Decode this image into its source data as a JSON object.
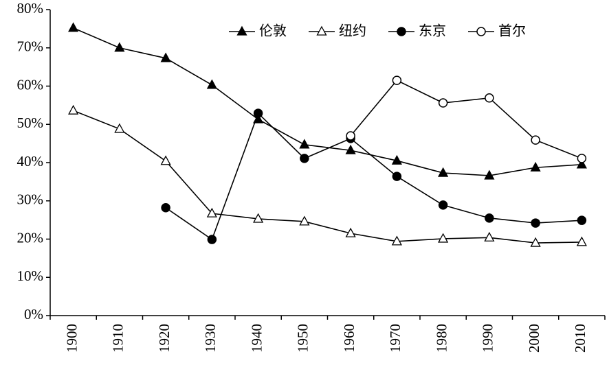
{
  "chart_data": {
    "type": "line",
    "categories": [
      "1900",
      "1910",
      "1920",
      "1930",
      "1940",
      "1950",
      "1960",
      "1970",
      "1980",
      "1990",
      "2000",
      "2010"
    ],
    "ylim": [
      0,
      80
    ],
    "yticks": [
      {
        "value": 0,
        "label": "0%"
      },
      {
        "value": 10,
        "label": "10%"
      },
      {
        "value": 20,
        "label": "20%"
      },
      {
        "value": 30,
        "label": "30%"
      },
      {
        "value": 40,
        "label": "40%"
      },
      {
        "value": 50,
        "label": "50%"
      },
      {
        "value": 60,
        "label": "60%"
      },
      {
        "value": 70,
        "label": "70%"
      },
      {
        "value": 80,
        "label": "80%"
      }
    ],
    "legend": "top",
    "series": [
      {
        "name": "伦敦",
        "color": "#000000",
        "marker": "triangle",
        "filled": true,
        "values": [
          75.2,
          70,
          67.3,
          60.3,
          51.3,
          44.7,
          43.2,
          40.5,
          37.3,
          36.6,
          38.7,
          39.5
        ]
      },
      {
        "name": "纽约",
        "color": "#000000",
        "marker": "triangle",
        "filled": false,
        "values": [
          53.6,
          48.8,
          40.4,
          26.7,
          25.3,
          24.6,
          21.5,
          19.4,
          20.1,
          20.4,
          19.0,
          19.2
        ]
      },
      {
        "name": "东京",
        "color": "#000000",
        "marker": "circle",
        "filled": true,
        "values": [
          null,
          null,
          28.2,
          19.9,
          52.9,
          41.1,
          46.3,
          36.4,
          28.9,
          25.5,
          24.2,
          24.9
        ]
      },
      {
        "name": "首尔",
        "color": "#000000",
        "marker": "circle",
        "filled": false,
        "values": [
          null,
          null,
          null,
          null,
          null,
          null,
          47.0,
          61.5,
          55.6,
          56.9,
          45.9,
          41.1
        ]
      }
    ]
  }
}
